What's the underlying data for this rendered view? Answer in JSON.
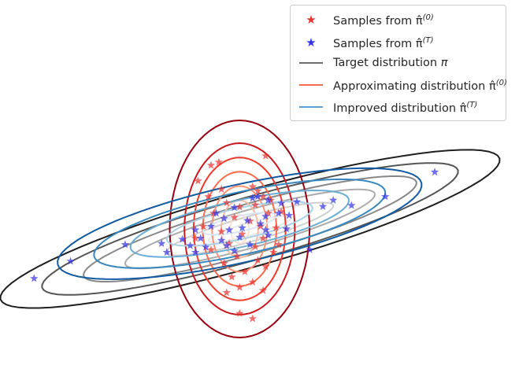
{
  "chart_data": {
    "type": "scatter",
    "title": "",
    "xlabel": "",
    "ylabel": "",
    "axes_visible": false,
    "grid": false,
    "legend_position": "top-right",
    "xlim": [
      -4.2,
      4.2
    ],
    "ylim": [
      -2.7,
      1.9
    ],
    "contours": [
      {
        "name": "Target distribution π",
        "colormap": "Greys",
        "center": [
          0.0,
          0.0
        ],
        "covariance": [
          [
            4.0,
            1.1
          ],
          [
            1.1,
            0.4
          ]
        ],
        "levels_sigma": [
          0.4,
          0.8,
          1.2,
          1.6,
          2.0,
          2.4
        ],
        "colors": [
          "#e8e8e8",
          "#cfcfcf",
          "#ababab",
          "#888888",
          "#555555",
          "#1f1f1f"
        ]
      },
      {
        "name": "Approximating distribution π̂(0)",
        "colormap": "Reds",
        "center": [
          -0.2,
          0.0
        ],
        "covariance": [
          [
            0.5,
            0.0
          ],
          [
            0.0,
            1.2
          ]
        ],
        "levels_sigma": [
          0.25,
          0.5,
          0.75,
          1.0,
          1.25,
          1.5,
          1.9
        ],
        "colors": [
          "#fde0d2",
          "#fcbba1",
          "#fc9272",
          "#fb6a4a",
          "#ef3b2c",
          "#cb181d",
          "#99000d"
        ]
      },
      {
        "name": "Improved distribution π̂(T)",
        "colormap": "Blues",
        "center": [
          -0.2,
          0.1
        ],
        "covariance": [
          [
            4.0,
            0.85
          ],
          [
            0.85,
            0.37
          ]
        ],
        "levels_sigma": [
          0.35,
          0.7,
          1.05,
          1.4,
          1.75
        ],
        "colors": [
          "#d6e6f4",
          "#abd0e6",
          "#6aaed6",
          "#3787c0",
          "#105ba4"
        ]
      }
    ],
    "series": [
      {
        "name": "Samples from π̂(0)",
        "marker": "star",
        "color": "#e8322e",
        "points": [
          [
            -0.75,
            1.22
          ],
          [
            -0.6,
            1.28
          ],
          [
            0.3,
            1.4
          ],
          [
            -1.0,
            0.92
          ],
          [
            -0.8,
            0.62
          ],
          [
            -0.55,
            0.76
          ],
          [
            0.05,
            0.81
          ],
          [
            0.15,
            0.73
          ],
          [
            0.25,
            0.62
          ],
          [
            0.4,
            0.55
          ],
          [
            -0.45,
            0.5
          ],
          [
            -0.2,
            0.42
          ],
          [
            0.1,
            0.46
          ],
          [
            0.35,
            0.3
          ],
          [
            0.6,
            0.33
          ],
          [
            -0.7,
            0.3
          ],
          [
            -0.3,
            0.22
          ],
          [
            0.0,
            0.15
          ],
          [
            0.2,
            0.05
          ],
          [
            0.5,
            0.02
          ],
          [
            -0.9,
            0.05
          ],
          [
            -0.55,
            -0.05
          ],
          [
            -0.15,
            -0.1
          ],
          [
            0.25,
            -0.18
          ],
          [
            -0.4,
            -0.28
          ],
          [
            0.1,
            -0.34
          ],
          [
            -0.75,
            -0.4
          ],
          [
            0.45,
            -0.45
          ],
          [
            -0.25,
            -0.52
          ],
          [
            0.15,
            -0.6
          ],
          [
            -0.5,
            -0.66
          ],
          [
            0.3,
            -0.72
          ],
          [
            -0.1,
            -0.82
          ],
          [
            -0.35,
            -0.92
          ],
          [
            0.05,
            -1.02
          ],
          [
            -0.2,
            -1.12
          ],
          [
            0.25,
            -1.18
          ],
          [
            -0.45,
            -1.22
          ],
          [
            -0.2,
            -1.62
          ],
          [
            0.05,
            -1.72
          ],
          [
            0.55,
            -0.3
          ],
          [
            -1.05,
            -0.18
          ]
        ]
      },
      {
        "name": "Samples from π̂(T)",
        "marker": "star",
        "color": "#3232e6",
        "points": [
          [
            3.55,
            1.09
          ],
          [
            2.6,
            0.62
          ],
          [
            1.6,
            0.55
          ],
          [
            1.95,
            0.45
          ],
          [
            0.05,
            0.59
          ],
          [
            0.15,
            0.62
          ],
          [
            0.35,
            0.55
          ],
          [
            0.6,
            0.49
          ],
          [
            0.9,
            0.52
          ],
          [
            1.4,
            0.43
          ],
          [
            0.55,
            0.3
          ],
          [
            0.75,
            0.26
          ],
          [
            0.3,
            0.24
          ],
          [
            -0.3,
            0.41
          ],
          [
            -0.65,
            0.3
          ],
          [
            -0.5,
            0.2
          ],
          [
            -0.05,
            0.16
          ],
          [
            0.2,
            0.1
          ],
          [
            -0.15,
            0.02
          ],
          [
            -0.4,
            -0.02
          ],
          [
            -0.75,
            0.05
          ],
          [
            -1.05,
            -0.02
          ],
          [
            0.3,
            -0.02
          ],
          [
            -0.95,
            -0.18
          ],
          [
            -0.55,
            -0.22
          ],
          [
            -0.2,
            -0.16
          ],
          [
            -1.3,
            -0.2
          ],
          [
            -1.7,
            -0.28
          ],
          [
            -1.15,
            -0.32
          ],
          [
            -0.85,
            -0.35
          ],
          [
            -0.45,
            -0.32
          ],
          [
            0.0,
            -0.3
          ],
          [
            -1.05,
            -0.45
          ],
          [
            -1.6,
            -0.45
          ],
          [
            1.15,
            -0.4
          ],
          [
            -2.4,
            -0.3
          ],
          [
            -3.45,
            -0.62
          ],
          [
            -4.15,
            -0.95
          ],
          [
            -0.3,
            -0.42
          ],
          [
            0.35,
            -0.12
          ],
          [
            0.7,
            0.0
          ]
        ]
      }
    ]
  },
  "legend": {
    "items": [
      {
        "kind": "marker",
        "color": "#e8322e",
        "label": "Samples from ",
        "sym": "π̂",
        "sup": "(0)",
        "tail": ""
      },
      {
        "kind": "marker",
        "color": "#3232e6",
        "label": "Samples from ",
        "sym": "π̂",
        "sup": "(T)",
        "tail": ""
      },
      {
        "kind": "line",
        "color": "#6e6e6e",
        "label": "Target distribution ",
        "sym": "π",
        "sup": "",
        "tail": ""
      },
      {
        "kind": "line",
        "color": "#f26b4f",
        "label": "Approximating distribution ",
        "sym": "π̂",
        "sup": "(0)",
        "tail": ""
      },
      {
        "kind": "line",
        "color": "#5aa0d6",
        "label": "Improved distribution ",
        "sym": "π̂",
        "sup": "(T)",
        "tail": ""
      }
    ]
  }
}
